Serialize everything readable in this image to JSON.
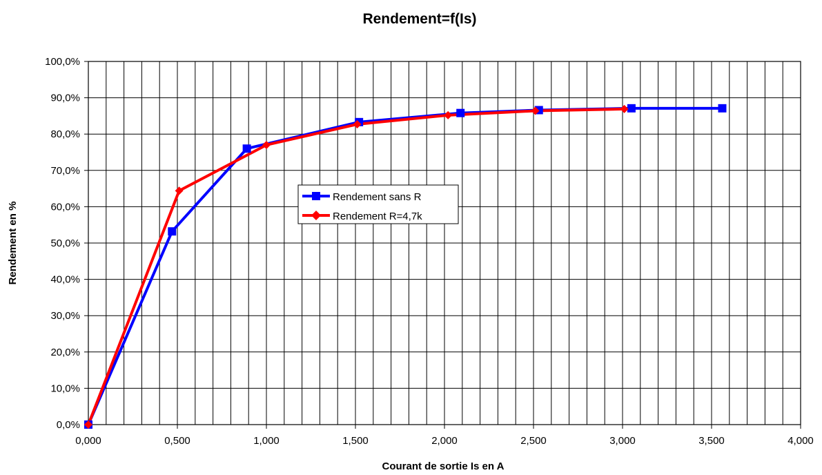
{
  "chart_data": {
    "type": "line",
    "title": "Rendement=f(Is)",
    "xlabel": "Courant de sortie Is en A",
    "ylabel": "Rendement en %",
    "xlim": [
      0,
      4
    ],
    "ylim": [
      0,
      100
    ],
    "grid": true,
    "legend_position": "center",
    "x_tick_labels": [
      "0,000",
      "0,500",
      "1,000",
      "1,500",
      "2,000",
      "2,500",
      "3,000",
      "3,500",
      "4,000"
    ],
    "y_tick_labels": [
      "0,0%",
      "10,0%",
      "20,0%",
      "30,0%",
      "40,0%",
      "50,0%",
      "60,0%",
      "70,0%",
      "80,0%",
      "90,0%",
      "100,0%"
    ],
    "series": [
      {
        "name": "Rendement sans R",
        "color": "#0000ff",
        "marker": "square",
        "x": [
          0.0,
          0.47,
          0.89,
          1.52,
          2.09,
          2.53,
          3.05,
          3.56
        ],
        "y": [
          0.0,
          53.2,
          76.0,
          83.3,
          85.8,
          86.6,
          87.1,
          87.1
        ]
      },
      {
        "name": "Rendement R=4,7k",
        "color": "#ff0000",
        "marker": "diamond",
        "x": [
          0.0,
          0.51,
          1.0,
          1.51,
          2.02,
          2.51,
          3.01
        ],
        "y": [
          0.0,
          64.4,
          77.0,
          82.7,
          85.2,
          86.4,
          86.9
        ]
      }
    ]
  }
}
